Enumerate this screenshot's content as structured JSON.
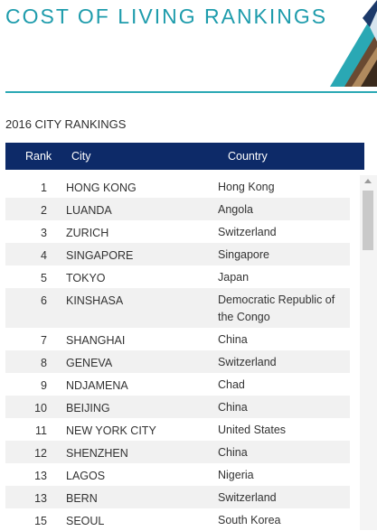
{
  "header": {
    "title": "COST OF LIVING RANKINGS"
  },
  "section": {
    "subtitle": "2016 CITY RANKINGS"
  },
  "table": {
    "columns": {
      "rank": "Rank",
      "city": "City",
      "country": "Country"
    },
    "rows": [
      {
        "rank": "1",
        "city": "HONG KONG",
        "country": "Hong Kong"
      },
      {
        "rank": "2",
        "city": "LUANDA",
        "country": "Angola"
      },
      {
        "rank": "3",
        "city": "ZURICH",
        "country": "Switzerland"
      },
      {
        "rank": "4",
        "city": "SINGAPORE",
        "country": "Singapore"
      },
      {
        "rank": "5",
        "city": "TOKYO",
        "country": "Japan"
      },
      {
        "rank": "6",
        "city": "KINSHASA",
        "country": "Democratic Republic of the Congo"
      },
      {
        "rank": "7",
        "city": "SHANGHAI",
        "country": "China"
      },
      {
        "rank": "8",
        "city": "GENEVA",
        "country": "Switzerland"
      },
      {
        "rank": "9",
        "city": "NDJAMENA",
        "country": "Chad"
      },
      {
        "rank": "10",
        "city": "BEIJING",
        "country": "China"
      },
      {
        "rank": "11",
        "city": "NEW YORK CITY",
        "country": "United States"
      },
      {
        "rank": "12",
        "city": "SHENZHEN",
        "country": "China"
      },
      {
        "rank": "13",
        "city": "LAGOS",
        "country": "Nigeria"
      },
      {
        "rank": "13",
        "city": "BERN",
        "country": "Switzerland"
      },
      {
        "rank": "15",
        "city": "SEOUL",
        "country": "South Korea"
      }
    ]
  },
  "colors": {
    "accent": "#1e9cac",
    "header_bg": "#0d2a68",
    "row_alt": "#f1f1f1"
  },
  "icons": {
    "corner": "geometric-triangle-photo-collage"
  }
}
